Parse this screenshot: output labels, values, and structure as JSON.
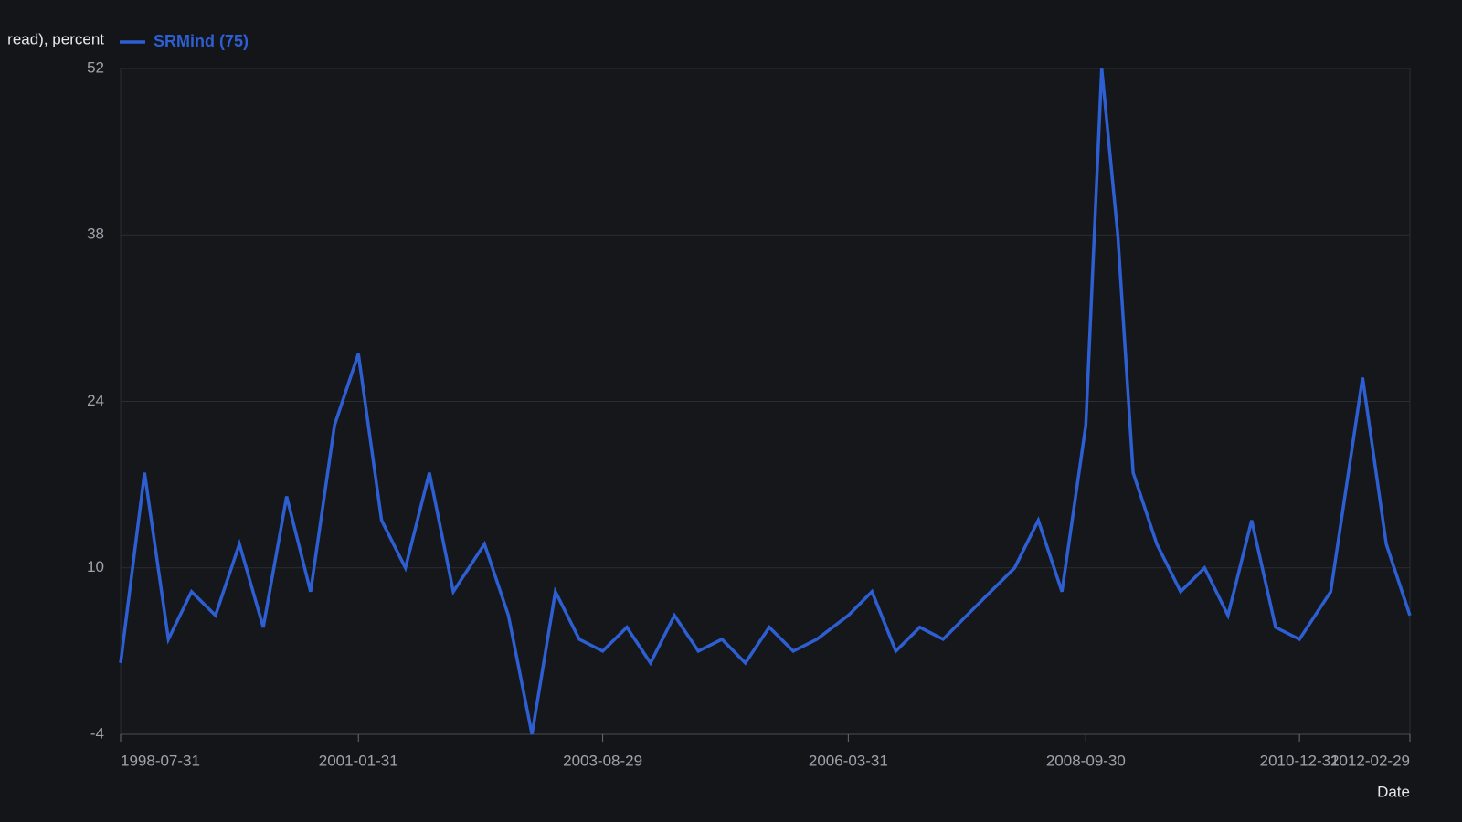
{
  "chart_data": {
    "type": "line",
    "ylabel": "read), percent",
    "xlabel": "Date",
    "x": [
      "1998-07-31",
      "1998-10-31",
      "1999-01-31",
      "1999-04-30",
      "1999-07-31",
      "1999-10-31",
      "2000-01-31",
      "2000-04-30",
      "2000-07-31",
      "2000-10-31",
      "2001-01-31",
      "2001-04-30",
      "2001-07-31",
      "2001-10-31",
      "2002-01-31",
      "2002-05-31",
      "2002-08-31",
      "2002-11-30",
      "2003-02-28",
      "2003-05-31",
      "2003-08-29",
      "2003-11-30",
      "2004-02-29",
      "2004-05-31",
      "2004-08-31",
      "2004-11-30",
      "2005-02-28",
      "2005-05-31",
      "2005-08-31",
      "2005-11-30",
      "2006-03-31",
      "2006-06-30",
      "2006-09-30",
      "2006-12-31",
      "2007-03-31",
      "2007-06-30",
      "2007-09-30",
      "2007-12-31",
      "2008-03-31",
      "2008-06-30",
      "2008-09-30",
      "2008-11-30",
      "2009-01-31",
      "2009-03-31",
      "2009-06-30",
      "2009-09-30",
      "2009-12-31",
      "2010-03-31",
      "2010-06-30",
      "2010-09-30",
      "2010-12-31",
      "2011-04-30",
      "2011-08-31",
      "2011-11-30",
      "2012-02-29"
    ],
    "series": [
      {
        "name": "SRMind (75)",
        "color": "#2d5fd3",
        "values": [
          2,
          18,
          4,
          8,
          6,
          12,
          5,
          16,
          8,
          22,
          28,
          14,
          10,
          18,
          8,
          12,
          6,
          -4,
          8,
          4,
          3,
          5,
          2,
          6,
          3,
          4,
          2,
          5,
          3,
          4,
          6,
          8,
          3,
          5,
          4,
          6,
          8,
          10,
          14,
          8,
          22,
          52,
          38,
          18,
          12,
          8,
          10,
          6,
          14,
          5,
          4,
          8,
          26,
          12,
          6
        ]
      }
    ],
    "xlim": [
      "1998-07-31",
      "2012-02-29"
    ],
    "xticks": [
      "1998-07-31",
      "2001-01-31",
      "2003-08-29",
      "2006-03-31",
      "2008-09-30",
      "2010-12-31",
      "2012-02-29"
    ],
    "ylim": [
      -4,
      52
    ],
    "yticks": [
      -4,
      10,
      24,
      38,
      52
    ],
    "grid": true
  }
}
